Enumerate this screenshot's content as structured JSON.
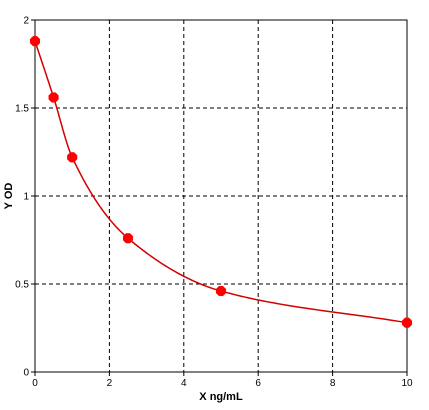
{
  "chart_data": {
    "type": "scatter",
    "title": "",
    "xlabel": "X ng/mL",
    "ylabel": "Y OD",
    "xlim": [
      0,
      10
    ],
    "ylim": [
      0,
      2
    ],
    "x_ticks": [
      0,
      2,
      4,
      6,
      8,
      10
    ],
    "y_ticks": [
      0,
      0.5,
      1,
      1.5,
      2
    ],
    "x_tick_labels": [
      "0",
      "2",
      "4",
      "6",
      "8",
      "10"
    ],
    "y_tick_labels": [
      "0",
      "0.5",
      "1",
      "1.5",
      "2"
    ],
    "grid": true,
    "grid_style": "dashed",
    "legend": "none",
    "series": [
      {
        "x": [
          0,
          0.5,
          1,
          2.5,
          5,
          10
        ],
        "y": [
          1.88,
          1.56,
          1.22,
          0.76,
          0.46,
          0.28
        ],
        "color": "#ff0000",
        "marker": "octagon",
        "fit_line": "smooth",
        "line_color": "#d40000"
      }
    ]
  }
}
